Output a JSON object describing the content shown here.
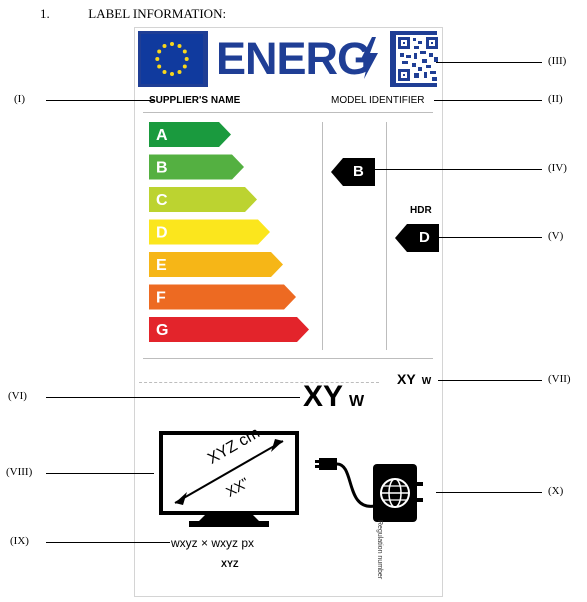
{
  "heading": {
    "number": "1.",
    "title": "LABEL INFORMATION:"
  },
  "label": {
    "logo_text": "ENERG",
    "supplier_name": "SUPPLIER'S NAME",
    "model_identifier": "MODEL IDENTIFIER",
    "scale": [
      {
        "letter": "A",
        "color": "#1a9a3e"
      },
      {
        "letter": "B",
        "color": "#54b041"
      },
      {
        "letter": "C",
        "color": "#bcd330"
      },
      {
        "letter": "D",
        "color": "#fbe61d"
      },
      {
        "letter": "E",
        "color": "#f6b617"
      },
      {
        "letter": "F",
        "color": "#ed6a22"
      },
      {
        "letter": "G",
        "color": "#e3242b"
      }
    ],
    "sdr_class": "B",
    "hdr_label": "HDR",
    "hdr_class": "D",
    "fine_text": "",
    "sdr_power": {
      "value": "XY",
      "unit": "W"
    },
    "hdr_power": {
      "value": "XY",
      "unit": "W"
    },
    "diagonal_cm": "XYZ cm",
    "diagonal_inch": "XX\"",
    "resolution": "wxyz × wxyz px",
    "resolution_sub": "XYZ",
    "regulation": "Regulation number"
  },
  "callouts": [
    "(I)",
    "(II)",
    "(III)",
    "(IV)",
    "(V)",
    "(VI)",
    "(VII)",
    "(VIII)",
    "(IX)",
    "(X)"
  ]
}
